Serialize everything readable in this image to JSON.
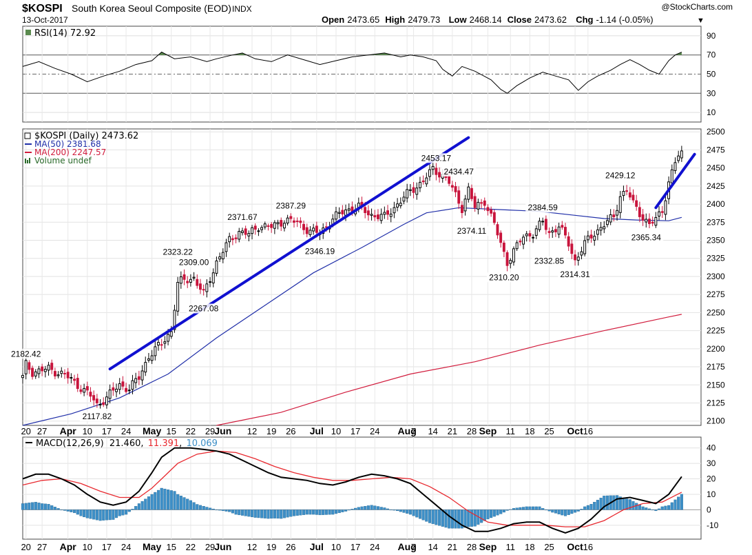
{
  "header": {
    "symbol": "$KOSPI",
    "name": "South Korea Seoul Composite (EOD)",
    "exchange": "INDX",
    "date": "13-Oct-2017",
    "watermark": "@StockCharts.com",
    "ohlc": [
      {
        "label": "Open",
        "value": "2473.65"
      },
      {
        "label": "High",
        "value": "2479.73"
      },
      {
        "label": "Low",
        "value": "2468.14"
      },
      {
        "label": "Close",
        "value": "2473.62"
      },
      {
        "label": "Chg",
        "value": "-1.14 (-0.05%)"
      }
    ],
    "down_arrow": "▼"
  },
  "rsi_panel": {
    "legend": "RSI(14) 72.92",
    "ticks": [
      "90",
      "70",
      "50",
      "30",
      "10"
    ],
    "tick_values": [
      90,
      70,
      50,
      30,
      10
    ],
    "range": [
      0,
      100
    ],
    "overbought": 70,
    "oversold": 30,
    "fill_color": "#5a8a4e"
  },
  "price_panel": {
    "legend": [
      {
        "text": "$KOSPI (Daily) 2473.62",
        "color": "#000000"
      },
      {
        "text": "MA(50) 2381.68",
        "color": "#1f2ea8"
      },
      {
        "text": "MA(200) 2247.57",
        "color": "#d11b3c"
      },
      {
        "text": "Volume undef",
        "color": "#2a6a2a"
      }
    ],
    "ticks": [
      "2500",
      "2475",
      "2450",
      "2425",
      "2400",
      "2375",
      "2350",
      "2325",
      "2300",
      "2275",
      "2250",
      "2225",
      "2200",
      "2175",
      "2150",
      "2125",
      "2100"
    ],
    "tick_values": [
      2500,
      2475,
      2450,
      2425,
      2400,
      2375,
      2350,
      2325,
      2300,
      2275,
      2250,
      2225,
      2200,
      2175,
      2150,
      2125,
      2100
    ],
    "range": [
      2094,
      2504
    ],
    "annotations": [
      {
        "text": "2182.42",
        "day": 1,
        "value": 2182.42,
        "pos": "above"
      },
      {
        "text": "2117.82",
        "day": 23,
        "value": 2117.82,
        "pos": "below"
      },
      {
        "text": "2323.22",
        "day": 48,
        "value": 2323.22,
        "pos": "above"
      },
      {
        "text": "2309.00",
        "day": 53,
        "value": 2309.0,
        "pos": "above"
      },
      {
        "text": "2267.08",
        "day": 56,
        "value": 2267.08,
        "pos": "below"
      },
      {
        "text": "2371.67",
        "day": 68,
        "value": 2371.67,
        "pos": "above"
      },
      {
        "text": "2387.29",
        "day": 83,
        "value": 2387.29,
        "pos": "above"
      },
      {
        "text": "2346.19",
        "day": 92,
        "value": 2346.19,
        "pos": "below"
      },
      {
        "text": "2453.17",
        "day": 128,
        "value": 2453.17,
        "pos": "above"
      },
      {
        "text": "2434.47",
        "day": 135,
        "value": 2434.47,
        "pos": "above"
      },
      {
        "text": "2374.11",
        "day": 139,
        "value": 2374.11,
        "pos": "below"
      },
      {
        "text": "2310.20",
        "day": 149,
        "value": 2310.2,
        "pos": "below"
      },
      {
        "text": "2384.59",
        "day": 161,
        "value": 2384.59,
        "pos": "above"
      },
      {
        "text": "2332.85",
        "day": 163,
        "value": 2332.85,
        "pos": "below"
      },
      {
        "text": "2314.31",
        "day": 171,
        "value": 2314.31,
        "pos": "below"
      },
      {
        "text": "2429.12",
        "day": 185,
        "value": 2429.12,
        "pos": "above"
      },
      {
        "text": "2365.34",
        "day": 193,
        "value": 2365.34,
        "pos": "below"
      }
    ],
    "trendlines": [
      {
        "from": [
          27,
          2172
        ],
        "to": [
          138,
          2492
        ],
        "color": "#1010d0"
      },
      {
        "from": [
          196,
          2395
        ],
        "to": [
          208,
          2469
        ],
        "color": "#1010d0"
      }
    ]
  },
  "macd_panel": {
    "legend_label": "MACD(12,26,9)",
    "macd_value": "21.460",
    "signal_value": "11.391",
    "hist_value": "10.069",
    "ticks": [
      "40",
      "30",
      "20",
      "10",
      "0",
      "-10"
    ],
    "tick_values": [
      40,
      30,
      20,
      10,
      0,
      -10
    ],
    "range": [
      -19,
      47
    ],
    "hist_color": "#3d8fc7"
  },
  "x_axis": {
    "labels": [
      {
        "text": "20",
        "day": 1
      },
      {
        "text": "27",
        "day": 6
      },
      {
        "text": "Apr",
        "day": 14
      },
      {
        "text": "10",
        "day": 20
      },
      {
        "text": "17",
        "day": 26
      },
      {
        "text": "24",
        "day": 32
      },
      {
        "text": "May",
        "day": 40
      },
      {
        "text": "15",
        "day": 46
      },
      {
        "text": "22",
        "day": 52
      },
      {
        "text": "29",
        "day": 58
      },
      {
        "text": "Jun",
        "day": 62
      },
      {
        "text": "12",
        "day": 71
      },
      {
        "text": "19",
        "day": 77
      },
      {
        "text": "26",
        "day": 83
      },
      {
        "text": "Jul",
        "day": 91
      },
      {
        "text": "10",
        "day": 97
      },
      {
        "text": "17",
        "day": 103
      },
      {
        "text": "24",
        "day": 109
      },
      {
        "text": "Aug",
        "day": 119
      },
      {
        "text": "7",
        "day": 121
      },
      {
        "text": "14",
        "day": 127
      },
      {
        "text": "21",
        "day": 133
      },
      {
        "text": "28",
        "day": 139
      },
      {
        "text": "Sep",
        "day": 144
      },
      {
        "text": "11",
        "day": 151
      },
      {
        "text": "18",
        "day": 157
      },
      {
        "text": "25",
        "day": 163
      },
      {
        "text": "Oct",
        "day": 171
      },
      {
        "text": "16",
        "day": 175
      }
    ],
    "bold_months": [
      "Apr",
      "May",
      "Jun",
      "Jul",
      "Aug",
      "Sep",
      "Oct"
    ]
  },
  "colors": {
    "up": "#000000",
    "down": "#c8143c",
    "ma50": "#1f2ea8",
    "ma200": "#d11b3c",
    "macd_line": "#000000",
    "signal_line": "#e8282e"
  },
  "chart_data": {
    "type": "candlestick",
    "title": "$KOSPI South Korea Seoul Composite (EOD) INDX",
    "date": "13-Oct-2017",
    "x_range_days": [
      0,
      210
    ],
    "price_range": [
      2094,
      2504
    ],
    "ohlc_key_points": [
      {
        "day": 0,
        "close": 2160
      },
      {
        "day": 1,
        "close": 2178
      },
      {
        "day": 3,
        "close": 2168
      },
      {
        "day": 8,
        "close": 2172
      },
      {
        "day": 13,
        "close": 2164
      },
      {
        "day": 17,
        "close": 2150
      },
      {
        "day": 21,
        "close": 2135
      },
      {
        "day": 23,
        "close": 2122
      },
      {
        "day": 26,
        "close": 2133
      },
      {
        "day": 30,
        "close": 2150
      },
      {
        "day": 33,
        "close": 2145
      },
      {
        "day": 36,
        "close": 2160
      },
      {
        "day": 39,
        "close": 2190
      },
      {
        "day": 43,
        "close": 2207
      },
      {
        "day": 46,
        "close": 2225
      },
      {
        "day": 48,
        "close": 2290
      },
      {
        "day": 50,
        "close": 2295
      },
      {
        "day": 53,
        "close": 2298
      },
      {
        "day": 56,
        "close": 2275
      },
      {
        "day": 60,
        "close": 2320
      },
      {
        "day": 64,
        "close": 2350
      },
      {
        "day": 67,
        "close": 2362
      },
      {
        "day": 70,
        "close": 2358
      },
      {
        "day": 73,
        "close": 2370
      },
      {
        "day": 77,
        "close": 2368
      },
      {
        "day": 81,
        "close": 2378
      },
      {
        "day": 85,
        "close": 2375
      },
      {
        "day": 89,
        "close": 2362
      },
      {
        "day": 92,
        "close": 2360
      },
      {
        "day": 96,
        "close": 2380
      },
      {
        "day": 100,
        "close": 2392
      },
      {
        "day": 104,
        "close": 2396
      },
      {
        "day": 108,
        "close": 2385
      },
      {
        "day": 112,
        "close": 2382
      },
      {
        "day": 116,
        "close": 2400
      },
      {
        "day": 120,
        "close": 2418
      },
      {
        "day": 124,
        "close": 2432
      },
      {
        "day": 127,
        "close": 2448
      },
      {
        "day": 130,
        "close": 2440
      },
      {
        "day": 132,
        "close": 2430
      },
      {
        "day": 134,
        "close": 2412
      },
      {
        "day": 136,
        "close": 2395
      },
      {
        "day": 138,
        "close": 2420
      },
      {
        "day": 140,
        "close": 2395
      },
      {
        "day": 143,
        "close": 2405
      },
      {
        "day": 146,
        "close": 2372
      },
      {
        "day": 148,
        "close": 2345
      },
      {
        "day": 150,
        "close": 2320
      },
      {
        "day": 152,
        "close": 2335
      },
      {
        "day": 155,
        "close": 2355
      },
      {
        "day": 158,
        "close": 2360
      },
      {
        "day": 161,
        "close": 2375
      },
      {
        "day": 163,
        "close": 2360
      },
      {
        "day": 166,
        "close": 2370
      },
      {
        "day": 169,
        "close": 2345
      },
      {
        "day": 171,
        "close": 2322
      },
      {
        "day": 174,
        "close": 2345
      },
      {
        "day": 177,
        "close": 2360
      },
      {
        "day": 180,
        "close": 2372
      },
      {
        "day": 183,
        "close": 2382
      },
      {
        "day": 185,
        "close": 2412
      },
      {
        "day": 187,
        "close": 2420
      },
      {
        "day": 189,
        "close": 2400
      },
      {
        "day": 192,
        "close": 2382
      },
      {
        "day": 194,
        "close": 2372
      },
      {
        "day": 196,
        "close": 2378
      },
      {
        "day": 198,
        "close": 2392
      },
      {
        "day": 200,
        "close": 2430
      },
      {
        "day": 202,
        "close": 2458
      },
      {
        "day": 204,
        "close": 2473.62
      }
    ],
    "ma50": [
      [
        0,
        2094
      ],
      [
        15,
        2110
      ],
      [
        30,
        2132
      ],
      [
        45,
        2165
      ],
      [
        60,
        2215
      ],
      [
        75,
        2260
      ],
      [
        90,
        2305
      ],
      [
        105,
        2340
      ],
      [
        118,
        2372
      ],
      [
        125,
        2388
      ],
      [
        135,
        2395
      ],
      [
        150,
        2392
      ],
      [
        160,
        2390
      ],
      [
        170,
        2385
      ],
      [
        180,
        2380
      ],
      [
        190,
        2378
      ],
      [
        200,
        2377
      ],
      [
        204,
        2381.68
      ]
    ],
    "ma200": [
      [
        60,
        2094
      ],
      [
        80,
        2112
      ],
      [
        100,
        2140
      ],
      [
        120,
        2165
      ],
      [
        140,
        2182
      ],
      [
        160,
        2205
      ],
      [
        180,
        2225
      ],
      [
        200,
        2244
      ],
      [
        204,
        2247.57
      ]
    ],
    "rsi": [
      [
        0,
        58
      ],
      [
        5,
        63
      ],
      [
        10,
        56
      ],
      [
        15,
        50
      ],
      [
        20,
        42
      ],
      [
        25,
        48
      ],
      [
        30,
        53
      ],
      [
        35,
        60
      ],
      [
        40,
        64
      ],
      [
        43,
        73
      ],
      [
        47,
        66
      ],
      [
        52,
        68
      ],
      [
        57,
        63
      ],
      [
        60,
        66
      ],
      [
        65,
        70
      ],
      [
        68,
        72
      ],
      [
        72,
        66
      ],
      [
        77,
        63
      ],
      [
        82,
        70
      ],
      [
        87,
        65
      ],
      [
        92,
        60
      ],
      [
        97,
        64
      ],
      [
        102,
        68
      ],
      [
        107,
        70
      ],
      [
        112,
        72
      ],
      [
        117,
        68
      ],
      [
        120,
        70
      ],
      [
        124,
        68
      ],
      [
        128,
        64
      ],
      [
        130,
        55
      ],
      [
        133,
        48
      ],
      [
        136,
        58
      ],
      [
        140,
        53
      ],
      [
        145,
        44
      ],
      [
        148,
        34
      ],
      [
        150,
        30
      ],
      [
        153,
        38
      ],
      [
        157,
        46
      ],
      [
        161,
        52
      ],
      [
        165,
        48
      ],
      [
        169,
        44
      ],
      [
        172,
        33
      ],
      [
        175,
        42
      ],
      [
        178,
        48
      ],
      [
        182,
        54
      ],
      [
        185,
        60
      ],
      [
        188,
        65
      ],
      [
        191,
        60
      ],
      [
        194,
        54
      ],
      [
        197,
        50
      ],
      [
        200,
        64
      ],
      [
        202,
        70
      ],
      [
        204,
        72.92
      ]
    ],
    "macd": [
      [
        0,
        20
      ],
      [
        4,
        23
      ],
      [
        8,
        23
      ],
      [
        12,
        20
      ],
      [
        16,
        16
      ],
      [
        20,
        10
      ],
      [
        24,
        5
      ],
      [
        28,
        3
      ],
      [
        32,
        5
      ],
      [
        36,
        12
      ],
      [
        40,
        24
      ],
      [
        43,
        34
      ],
      [
        47,
        40
      ],
      [
        52,
        40
      ],
      [
        56,
        39
      ],
      [
        60,
        38
      ],
      [
        64,
        36
      ],
      [
        68,
        32
      ],
      [
        72,
        28
      ],
      [
        76,
        24
      ],
      [
        80,
        21
      ],
      [
        84,
        20
      ],
      [
        88,
        19
      ],
      [
        92,
        17
      ],
      [
        96,
        16
      ],
      [
        100,
        18
      ],
      [
        104,
        21
      ],
      [
        108,
        23
      ],
      [
        112,
        22
      ],
      [
        116,
        20
      ],
      [
        120,
        17
      ],
      [
        124,
        10
      ],
      [
        128,
        3
      ],
      [
        132,
        -4
      ],
      [
        136,
        -10
      ],
      [
        140,
        -14
      ],
      [
        144,
        -14
      ],
      [
        148,
        -12
      ],
      [
        152,
        -9
      ],
      [
        156,
        -8
      ],
      [
        160,
        -8
      ],
      [
        164,
        -12
      ],
      [
        168,
        -15
      ],
      [
        172,
        -12
      ],
      [
        176,
        -6
      ],
      [
        180,
        2
      ],
      [
        184,
        7
      ],
      [
        188,
        8
      ],
      [
        192,
        6
      ],
      [
        196,
        4
      ],
      [
        200,
        10
      ],
      [
        204,
        21.46
      ]
    ],
    "signal": [
      [
        0,
        16
      ],
      [
        6,
        19
      ],
      [
        12,
        20
      ],
      [
        18,
        17
      ],
      [
        24,
        12
      ],
      [
        30,
        8
      ],
      [
        36,
        8
      ],
      [
        40,
        14
      ],
      [
        44,
        22
      ],
      [
        48,
        30
      ],
      [
        54,
        36
      ],
      [
        60,
        38
      ],
      [
        66,
        37
      ],
      [
        72,
        33
      ],
      [
        78,
        28
      ],
      [
        84,
        24
      ],
      [
        90,
        21
      ],
      [
        96,
        19
      ],
      [
        102,
        19
      ],
      [
        108,
        20
      ],
      [
        114,
        21
      ],
      [
        120,
        20
      ],
      [
        126,
        15
      ],
      [
        132,
        8
      ],
      [
        138,
        -1
      ],
      [
        144,
        -8
      ],
      [
        150,
        -10
      ],
      [
        156,
        -10
      ],
      [
        162,
        -10
      ],
      [
        168,
        -11
      ],
      [
        174,
        -11
      ],
      [
        180,
        -7
      ],
      [
        186,
        0
      ],
      [
        192,
        4
      ],
      [
        198,
        5
      ],
      [
        204,
        11.39
      ]
    ],
    "series": [
      {
        "name": "$KOSPI (Daily) 2473.62"
      },
      {
        "name": "MA(50) 2381.68"
      },
      {
        "name": "MA(200) 2247.57"
      },
      {
        "name": "RSI(14) 72.92"
      },
      {
        "name": "MACD(12,26,9)"
      }
    ],
    "grid": true
  }
}
